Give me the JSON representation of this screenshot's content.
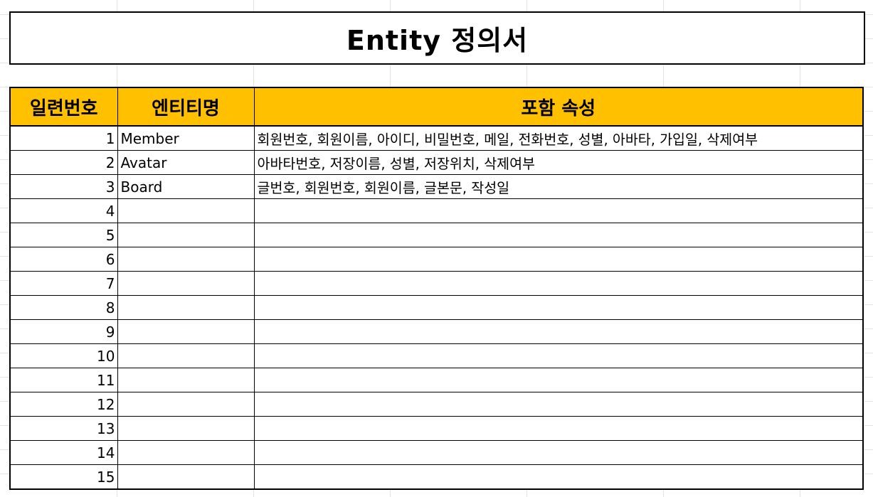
{
  "title": "Entity 정의서",
  "table": {
    "headers": [
      "일련번호",
      "엔티티명",
      "포함 속성"
    ],
    "rows": [
      {
        "num": "1",
        "entity": "Member",
        "attributes": "회원번호, 회원이름, 아이디, 비밀번호, 메일, 전화번호, 성별, 아바타, 가입일, 삭제여부"
      },
      {
        "num": "2",
        "entity": "Avatar",
        "attributes": "아바타번호, 저장이름, 성별, 저장위치, 삭제여부"
      },
      {
        "num": "3",
        "entity": "Board",
        "attributes": "글번호, 회원번호, 회원이름, 글본문, 작성일"
      },
      {
        "num": "4",
        "entity": "",
        "attributes": ""
      },
      {
        "num": "5",
        "entity": "",
        "attributes": ""
      },
      {
        "num": "6",
        "entity": "",
        "attributes": ""
      },
      {
        "num": "7",
        "entity": "",
        "attributes": ""
      },
      {
        "num": "8",
        "entity": "",
        "attributes": ""
      },
      {
        "num": "9",
        "entity": "",
        "attributes": ""
      },
      {
        "num": "10",
        "entity": "",
        "attributes": ""
      },
      {
        "num": "11",
        "entity": "",
        "attributes": ""
      },
      {
        "num": "12",
        "entity": "",
        "attributes": ""
      },
      {
        "num": "13",
        "entity": "",
        "attributes": ""
      },
      {
        "num": "14",
        "entity": "",
        "attributes": ""
      },
      {
        "num": "15",
        "entity": "",
        "attributes": ""
      }
    ]
  },
  "colors": {
    "header_fill": "#ffc000",
    "border": "#000000",
    "gridline": "#e3e3e3"
  }
}
